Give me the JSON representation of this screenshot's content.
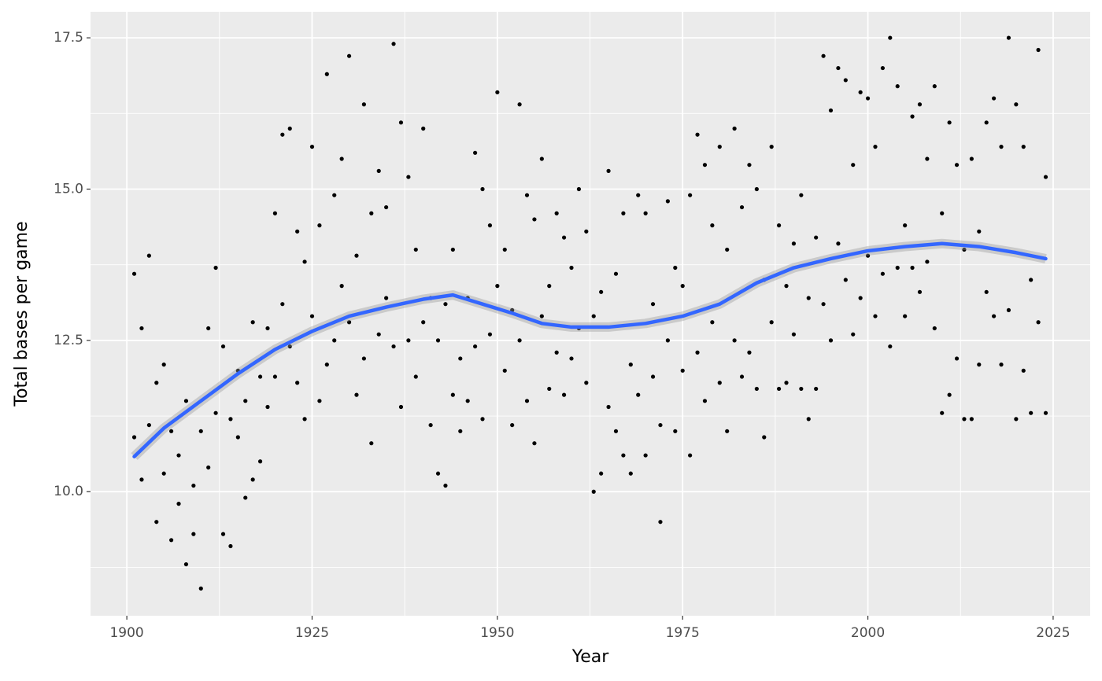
{
  "chart_data": {
    "type": "scatter",
    "x_label": "Year",
    "y_label": "Total bases per game",
    "color": "#000000",
    "x": [
      1901,
      1901,
      1902,
      1902,
      1903,
      1903,
      1904,
      1904,
      1905,
      1905,
      1906,
      1906,
      1907,
      1907,
      1908,
      1908,
      1909,
      1909,
      1910,
      1910,
      1911,
      1911,
      1912,
      1912,
      1913,
      1913,
      1914,
      1914,
      1915,
      1915,
      1916,
      1916,
      1917,
      1917,
      1918,
      1918,
      1919,
      1919,
      1920,
      1920,
      1921,
      1921,
      1922,
      1922,
      1923,
      1923,
      1924,
      1924,
      1925,
      1925,
      1926,
      1926,
      1927,
      1927,
      1928,
      1928,
      1929,
      1929,
      1930,
      1930,
      1931,
      1931,
      1932,
      1932,
      1933,
      1933,
      1934,
      1934,
      1935,
      1935,
      1936,
      1936,
      1937,
      1937,
      1938,
      1938,
      1939,
      1939,
      1940,
      1940,
      1941,
      1941,
      1942,
      1942,
      1943,
      1943,
      1944,
      1944,
      1945,
      1945,
      1946,
      1946,
      1947,
      1947,
      1948,
      1948,
      1949,
      1949,
      1950,
      1950,
      1951,
      1951,
      1952,
      1952,
      1953,
      1953,
      1954,
      1954,
      1955,
      1955,
      1956,
      1956,
      1957,
      1957,
      1958,
      1958,
      1959,
      1959,
      1960,
      1960,
      1961,
      1961,
      1962,
      1962,
      1963,
      1963,
      1964,
      1964,
      1965,
      1965,
      1966,
      1966,
      1967,
      1967,
      1968,
      1968,
      1969,
      1969,
      1970,
      1970,
      1971,
      1971,
      1972,
      1972,
      1973,
      1973,
      1974,
      1974,
      1975,
      1975,
      1976,
      1976,
      1977,
      1977,
      1978,
      1978,
      1979,
      1979,
      1980,
      1980,
      1981,
      1981,
      1982,
      1982,
      1983,
      1983,
      1984,
      1984,
      1985,
      1985,
      1986,
      1986,
      1987,
      1987,
      1988,
      1988,
      1989,
      1989,
      1990,
      1990,
      1991,
      1991,
      1992,
      1992,
      1993,
      1993,
      1994,
      1994,
      1995,
      1995,
      1996,
      1996,
      1997,
      1997,
      1998,
      1998,
      1999,
      1999,
      2000,
      2000,
      2001,
      2001,
      2002,
      2002,
      2003,
      2003,
      2004,
      2004,
      2005,
      2005,
      2006,
      2006,
      2007,
      2007,
      2008,
      2008,
      2009,
      2009,
      2010,
      2010,
      2011,
      2011,
      2012,
      2012,
      2013,
      2013,
      2014,
      2014,
      2015,
      2015,
      2016,
      2016,
      2017,
      2017,
      2018,
      2018,
      2019,
      2019,
      2020,
      2020,
      2021,
      2021,
      2022,
      2022,
      2023,
      2023,
      2024,
      2024
    ],
    "values": [
      13.6,
      10.9,
      12.7,
      10.2,
      13.9,
      11.1,
      9.5,
      11.8,
      10.3,
      12.1,
      9.2,
      11.0,
      9.8,
      10.6,
      8.8,
      11.5,
      9.3,
      10.1,
      8.4,
      11.0,
      12.7,
      10.4,
      13.7,
      11.3,
      9.3,
      12.4,
      9.1,
      11.2,
      10.9,
      12.0,
      9.9,
      11.5,
      10.2,
      12.8,
      10.5,
      11.9,
      11.4,
      12.7,
      14.6,
      11.9,
      13.1,
      15.9,
      16.0,
      12.4,
      14.3,
      11.8,
      13.8,
      11.2,
      15.7,
      12.9,
      11.5,
      14.4,
      16.9,
      12.1,
      14.9,
      12.5,
      15.5,
      13.4,
      17.2,
      12.8,
      13.9,
      11.6,
      16.4,
      12.2,
      14.6,
      10.8,
      15.3,
      12.6,
      13.2,
      14.7,
      17.4,
      12.4,
      16.1,
      11.4,
      15.2,
      12.5,
      14.0,
      11.9,
      16.0,
      12.8,
      13.2,
      11.1,
      10.3,
      12.5,
      10.1,
      13.1,
      14.0,
      11.6,
      12.2,
      11.0,
      13.2,
      11.5,
      15.6,
      12.4,
      15.0,
      11.2,
      14.4,
      12.6,
      16.6,
      13.4,
      14.0,
      12.0,
      13.0,
      11.1,
      16.4,
      12.5,
      14.9,
      11.5,
      14.5,
      10.8,
      15.5,
      12.9,
      13.4,
      11.7,
      14.6,
      12.3,
      14.2,
      11.6,
      13.7,
      12.2,
      15.0,
      12.7,
      14.3,
      11.8,
      10.0,
      12.9,
      10.3,
      13.3,
      15.3,
      11.4,
      13.6,
      11.0,
      14.6,
      10.6,
      10.3,
      12.1,
      14.9,
      11.6,
      14.6,
      10.6,
      13.1,
      11.9,
      9.5,
      11.1,
      14.8,
      12.5,
      13.7,
      11.0,
      13.4,
      12.0,
      10.6,
      14.9,
      15.9,
      12.3,
      15.4,
      11.5,
      14.4,
      12.8,
      15.7,
      11.8,
      14.0,
      11.0,
      16.0,
      12.5,
      14.7,
      11.9,
      15.4,
      12.3,
      15.0,
      11.7,
      10.9,
      13.5,
      15.7,
      12.8,
      14.4,
      11.7,
      13.4,
      11.8,
      14.1,
      12.6,
      14.9,
      11.7,
      11.2,
      13.2,
      11.7,
      14.2,
      17.2,
      13.1,
      16.3,
      12.5,
      17.0,
      14.1,
      16.8,
      13.5,
      15.4,
      12.6,
      16.6,
      13.2,
      16.5,
      13.9,
      15.7,
      12.9,
      17.0,
      13.6,
      17.5,
      12.4,
      16.7,
      13.7,
      14.4,
      12.9,
      16.2,
      13.7,
      16.4,
      13.3,
      15.5,
      13.8,
      16.7,
      12.7,
      11.3,
      14.6,
      16.1,
      11.6,
      15.4,
      12.2,
      11.2,
      14.0,
      15.5,
      11.2,
      14.3,
      12.1,
      16.1,
      13.3,
      16.5,
      12.9,
      15.7,
      12.1,
      17.5,
      13.0,
      16.4,
      11.2,
      15.7,
      12.0,
      11.3,
      13.5,
      17.3,
      12.8,
      15.2,
      11.3
    ],
    "smooth": {
      "color": "#3366ff",
      "x": [
        1901,
        1905,
        1910,
        1915,
        1920,
        1925,
        1930,
        1935,
        1940,
        1944,
        1948,
        1952,
        1956,
        1960,
        1965,
        1970,
        1975,
        1980,
        1985,
        1990,
        1995,
        2000,
        2005,
        2010,
        2015,
        2020,
        2024
      ],
      "values": [
        10.58,
        11.05,
        11.5,
        11.95,
        12.35,
        12.65,
        12.9,
        13.05,
        13.18,
        13.25,
        13.1,
        12.95,
        12.78,
        12.72,
        12.72,
        12.78,
        12.9,
        13.1,
        13.45,
        13.7,
        13.85,
        13.98,
        14.05,
        14.1,
        14.05,
        13.95,
        13.85
      ]
    },
    "xlim": [
      1895.1,
      2030
    ],
    "ylim": [
      7.95,
      17.93
    ],
    "xticks": [
      1900,
      1925,
      1950,
      1975,
      2000,
      2025
    ],
    "yticks": [
      {
        "value": 10,
        "label": "10.0"
      },
      {
        "value": 12.5,
        "label": "12.5"
      },
      {
        "value": 15,
        "label": "15.0"
      },
      {
        "value": 17.5,
        "label": "17.5"
      }
    ],
    "xticks_minor": [
      1912.5,
      1937.5,
      1962.5,
      1987.5,
      2012.5
    ],
    "yticks_minor": [
      8.75,
      11.25,
      13.75,
      16.25
    ],
    "grid": true
  }
}
